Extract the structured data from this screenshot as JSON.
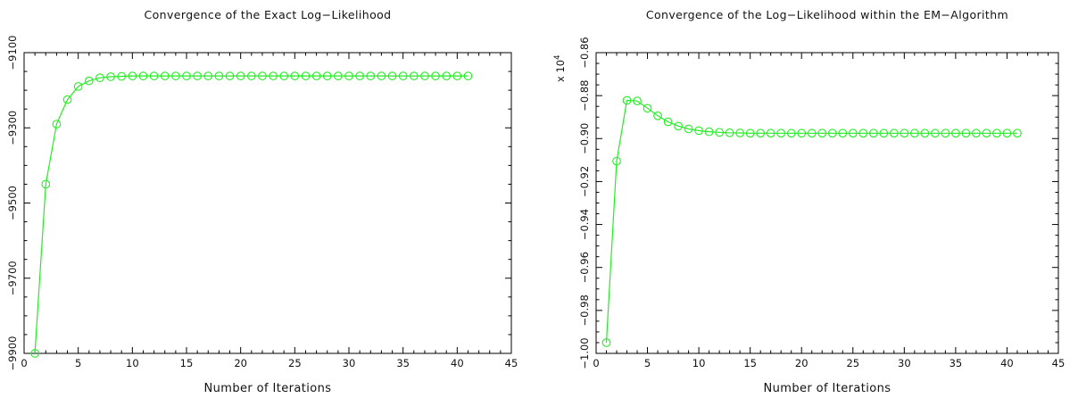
{
  "chart_data": [
    {
      "type": "line",
      "title": "Convergence of the Exact Log−Likelihood",
      "xlabel": "Number of Iterations",
      "ylabel": "",
      "xlim": [
        0,
        45
      ],
      "ylim": [
        -9900,
        -9100
      ],
      "xticks": [
        0,
        5,
        10,
        15,
        20,
        25,
        30,
        35,
        40,
        45
      ],
      "yticks": [
        -9900,
        -9700,
        -9500,
        -9300,
        -9100
      ],
      "ytick_labels": [
        "−9900",
        "−9700",
        "−9500",
        "−9300",
        "−9100"
      ],
      "y_multiplier": "",
      "color": "#22ee22",
      "marker": "circle",
      "x": [
        1,
        2,
        3,
        4,
        5,
        6,
        7,
        8,
        9,
        10,
        11,
        12,
        13,
        14,
        15,
        16,
        17,
        18,
        19,
        20,
        21,
        22,
        23,
        24,
        25,
        26,
        27,
        28,
        29,
        30,
        31,
        32,
        33,
        34,
        35,
        36,
        37,
        38,
        39,
        40,
        41
      ],
      "y": [
        -9900,
        -9450,
        -9290,
        -9225,
        -9190,
        -9175,
        -9167,
        -9164,
        -9163,
        -9162,
        -9162,
        -9162,
        -9162,
        -9162,
        -9162,
        -9162,
        -9162,
        -9162,
        -9162,
        -9162,
        -9162,
        -9162,
        -9162,
        -9162,
        -9162,
        -9162,
        -9162,
        -9162,
        -9162,
        -9162,
        -9162,
        -9162,
        -9162,
        -9162,
        -9162,
        -9162,
        -9162,
        -9162,
        -9162,
        -9162,
        -9162
      ]
    },
    {
      "type": "line",
      "title": "Convergence of the Log−Likelihood within the EM−Algorithm",
      "xlabel": "Number of Iterations",
      "ylabel": "",
      "xlim": [
        0,
        45
      ],
      "ylim": [
        -1.0,
        -0.86
      ],
      "xticks": [
        0,
        5,
        10,
        15,
        20,
        25,
        30,
        35,
        40,
        45
      ],
      "yticks": [
        -1.0,
        -0.98,
        -0.96,
        -0.94,
        -0.92,
        -0.9,
        -0.88,
        -0.86
      ],
      "ytick_labels": [
        "−1.00",
        "−0.98",
        "−0.96",
        "−0.94",
        "−0.92",
        "−0.90",
        "−0.88",
        "−0.86"
      ],
      "y_multiplier": "x 10",
      "y_multiplier_exp": "4",
      "color": "#22ee22",
      "marker": "circle",
      "x": [
        1,
        2,
        3,
        4,
        5,
        6,
        7,
        8,
        9,
        10,
        11,
        12,
        13,
        14,
        15,
        16,
        17,
        18,
        19,
        20,
        21,
        22,
        23,
        24,
        25,
        26,
        27,
        28,
        29,
        30,
        31,
        32,
        33,
        34,
        35,
        36,
        37,
        38,
        39,
        40,
        41
      ],
      "y": [
        -0.995,
        -0.9105,
        -0.8822,
        -0.8825,
        -0.8859,
        -0.8894,
        -0.8922,
        -0.8942,
        -0.8955,
        -0.8963,
        -0.8968,
        -0.8971,
        -0.8973,
        -0.8974,
        -0.8975,
        -0.8975,
        -0.8975,
        -0.8975,
        -0.8975,
        -0.8975,
        -0.8975,
        -0.8975,
        -0.8975,
        -0.8975,
        -0.8975,
        -0.8975,
        -0.8975,
        -0.8975,
        -0.8975,
        -0.8975,
        -0.8975,
        -0.8975,
        -0.8975,
        -0.8975,
        -0.8975,
        -0.8975,
        -0.8975,
        -0.8975,
        -0.8975,
        -0.8975,
        -0.8975
      ]
    }
  ]
}
